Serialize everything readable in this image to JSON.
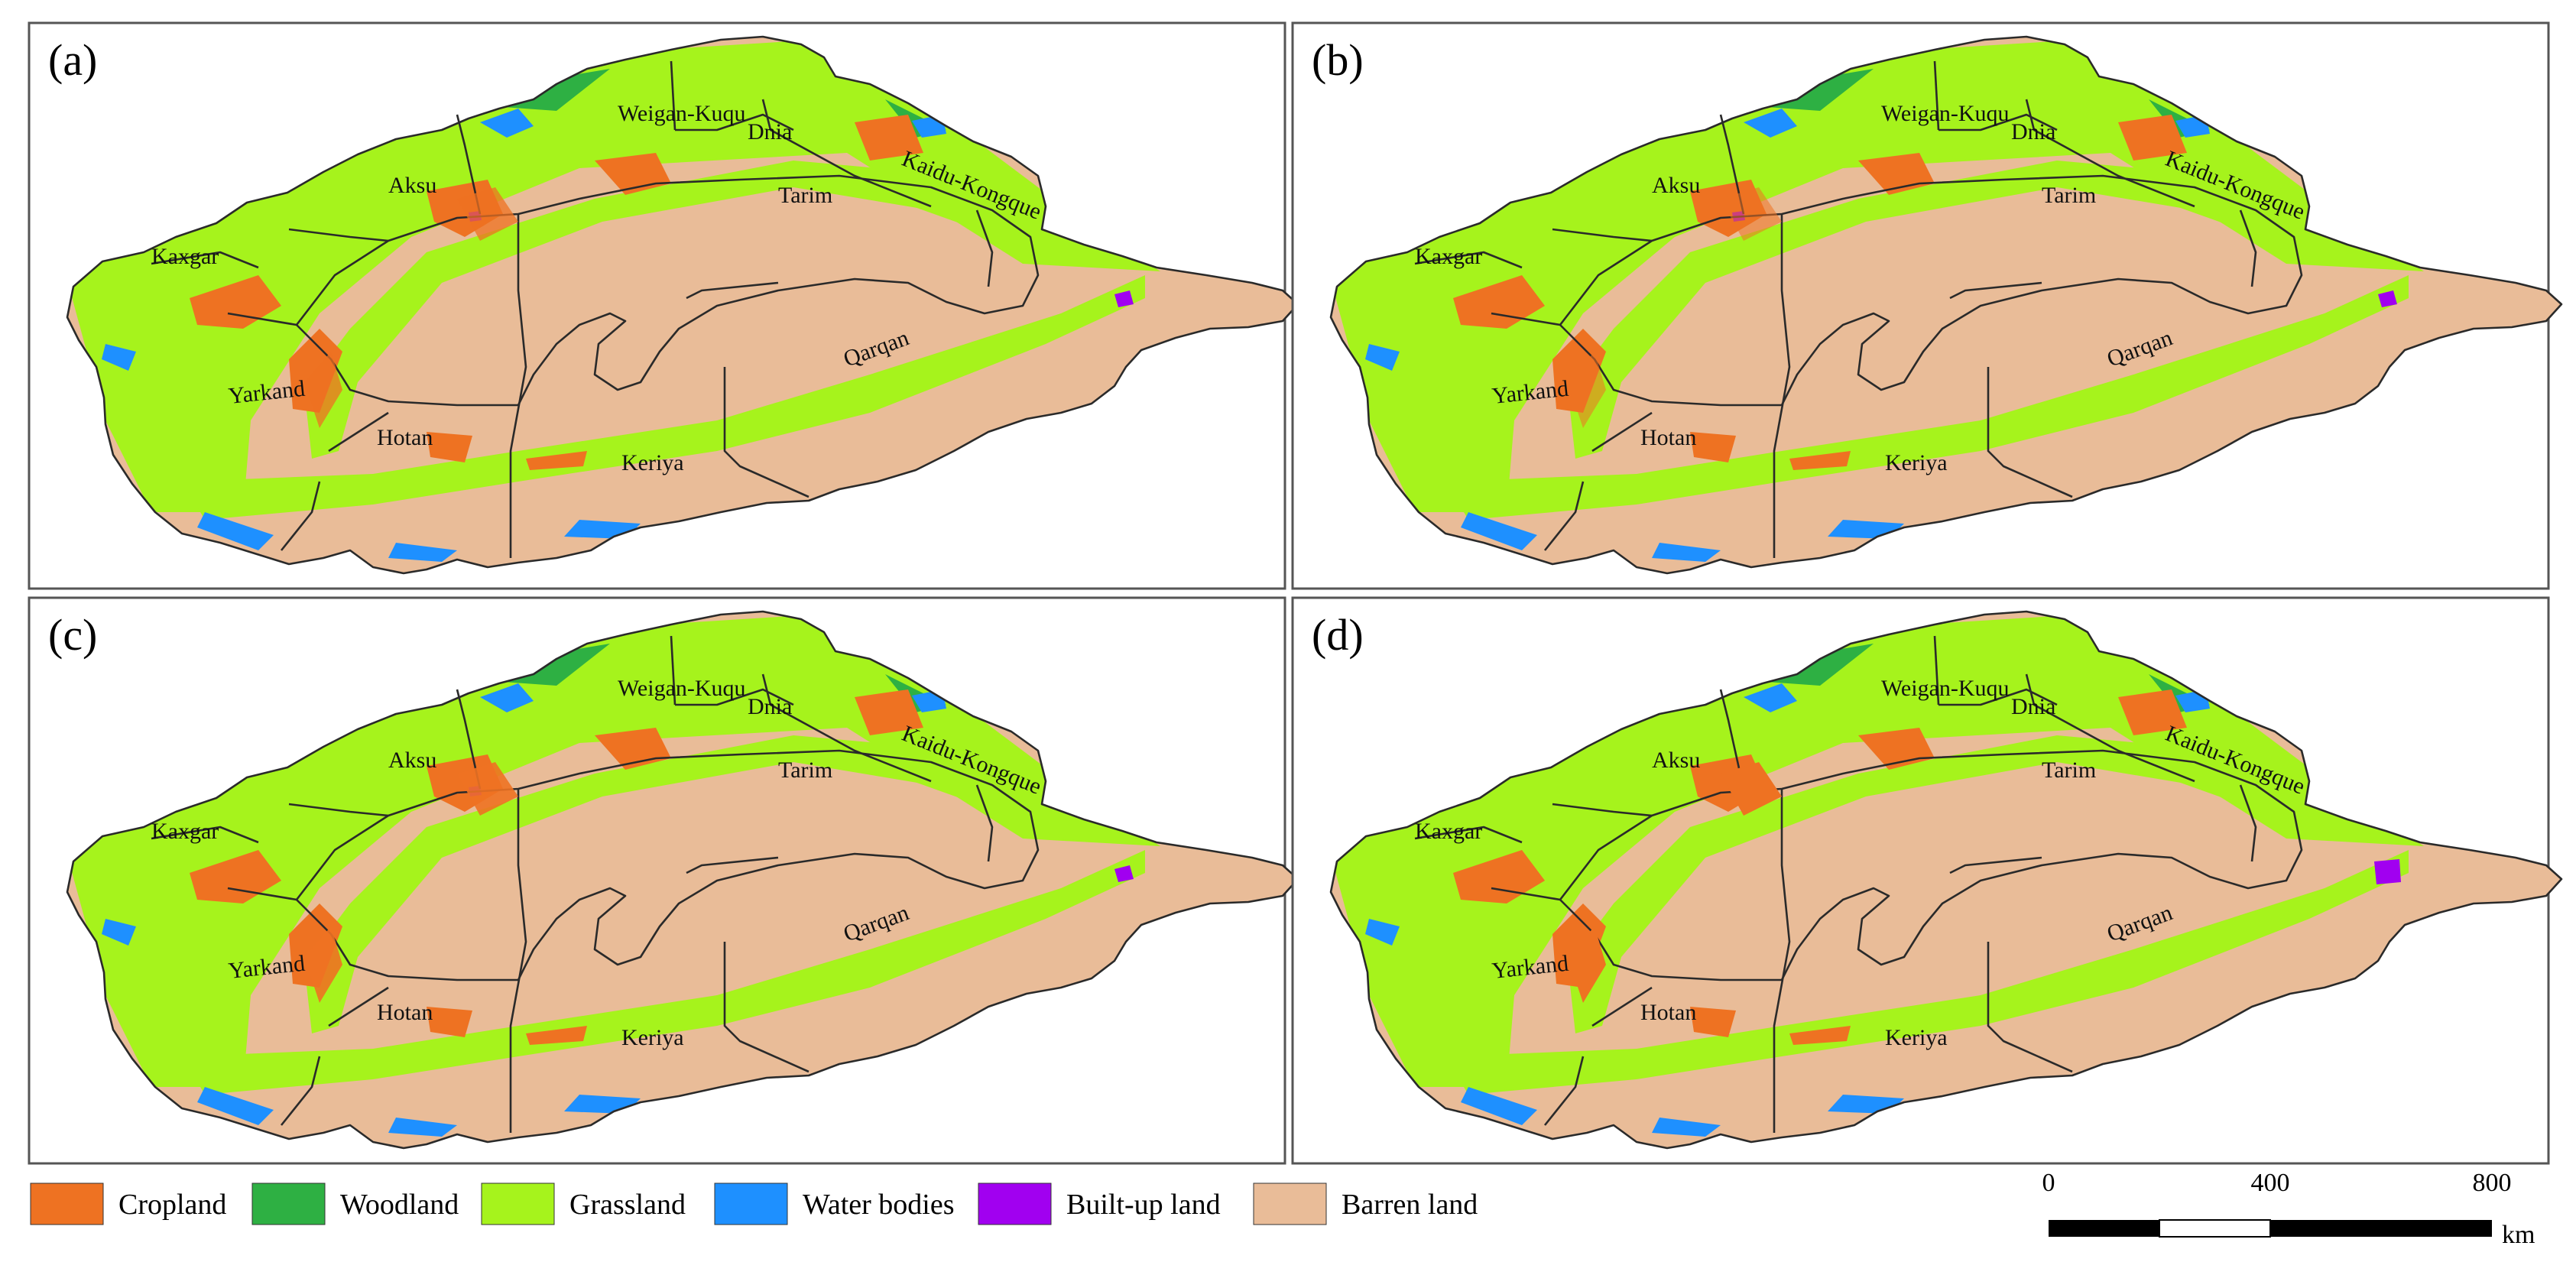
{
  "panels": [
    {
      "letter": "(a)",
      "cropland_extent": 0.75,
      "water_extent": 0.8,
      "builtup_extent": 0.0
    },
    {
      "letter": "(b)",
      "cropland_extent": 0.55,
      "water_extent": 0.85,
      "builtup_extent": 0.0
    },
    {
      "letter": "(c)",
      "cropland_extent": 0.9,
      "water_extent": 0.9,
      "builtup_extent": 0.0
    },
    {
      "letter": "(d)",
      "cropland_extent": 1.0,
      "water_extent": 0.75,
      "builtup_extent": 1.0
    }
  ],
  "basins": [
    {
      "id": "weigan-kuqu",
      "name": "Weigan-Kuqu"
    },
    {
      "id": "dnia",
      "name": "Dnia"
    },
    {
      "id": "kaidu-kongque",
      "name": "Kaidu-Kongque"
    },
    {
      "id": "aksu",
      "name": "Aksu"
    },
    {
      "id": "tarim",
      "name": "Tarim"
    },
    {
      "id": "kaxgar",
      "name": "Kaxgar"
    },
    {
      "id": "qarqan",
      "name": "Qarqan"
    },
    {
      "id": "yarkand",
      "name": "Yarkand"
    },
    {
      "id": "hotan",
      "name": "Hotan"
    },
    {
      "id": "keriya",
      "name": "Keriya"
    }
  ],
  "legend": [
    {
      "id": "cropland",
      "label": "Cropland",
      "color": "#ee7222"
    },
    {
      "id": "woodland",
      "label": "Woodland",
      "color": "#2eb043"
    },
    {
      "id": "grassland",
      "label": "Grassland",
      "color": "#a6f31c"
    },
    {
      "id": "water-bodies",
      "label": "Water bodies",
      "color": "#1e90ff"
    },
    {
      "id": "built-up-land",
      "label": "Built-up land",
      "color": "#a100f0"
    },
    {
      "id": "barren-land",
      "label": "Barren land",
      "color": "#e9bc98"
    }
  ],
  "scale_bar": {
    "ticks": [
      "0",
      "400",
      "800"
    ],
    "unit": "km"
  }
}
